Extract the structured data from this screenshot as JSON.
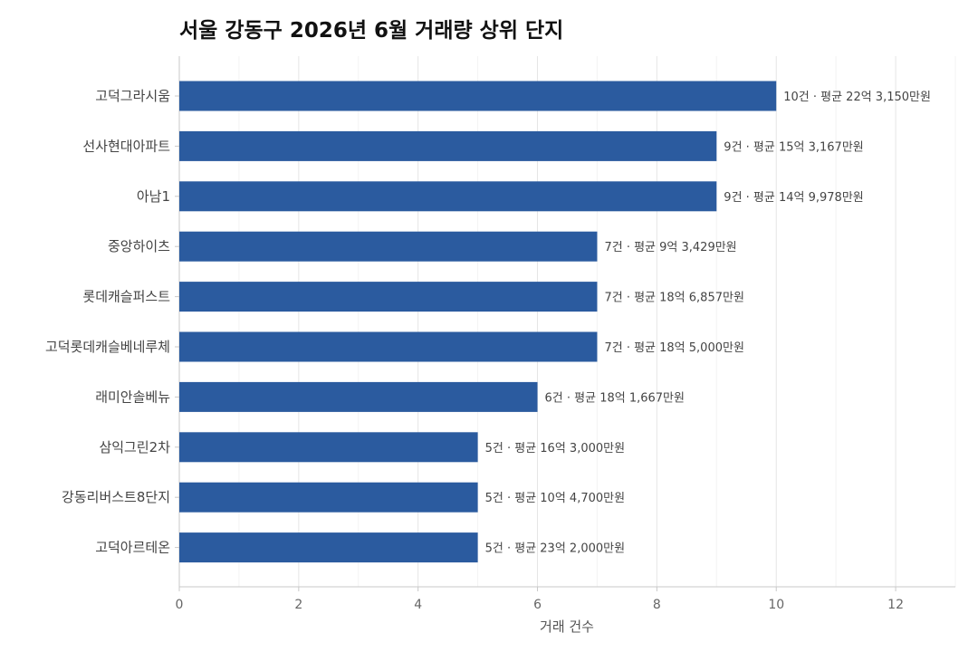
{
  "chart_data": {
    "type": "bar",
    "orientation": "horizontal",
    "title": "서울 강동구 2026년 6월 거래량 상위 단지",
    "xlabel": "거래 건수",
    "ylabel": "",
    "xlim": [
      0,
      13
    ],
    "xticks": [
      0,
      2,
      4,
      6,
      8,
      10,
      12
    ],
    "grid": true,
    "bar_color": "#2B5B9F",
    "categories": [
      "고덕그라시움",
      "선사현대아파트",
      "아남1",
      "중앙하이츠",
      "롯데캐슬퍼스트",
      "고덕롯데캐슬베네루체",
      "래미안솔베뉴",
      "삼익그린2차",
      "강동리버스트8단지",
      "고덕아르테온"
    ],
    "values": [
      10,
      9,
      9,
      7,
      7,
      7,
      6,
      5,
      5,
      5
    ],
    "data_labels": [
      "10건 · 평균 22억 3,150만원",
      "9건 · 평균 15억 3,167만원",
      "9건 · 평균 14억 9,978만원",
      "7건 · 평균 9억 3,429만원",
      "7건 · 평균 18억 6,857만원",
      "7건 · 평균 18억 5,000만원",
      "6건 · 평균 18억 1,667만원",
      "5건 · 평균 16억 3,000만원",
      "5건 · 평균 10억 4,700만원",
      "5건 · 평균 23억 2,000만원"
    ]
  }
}
